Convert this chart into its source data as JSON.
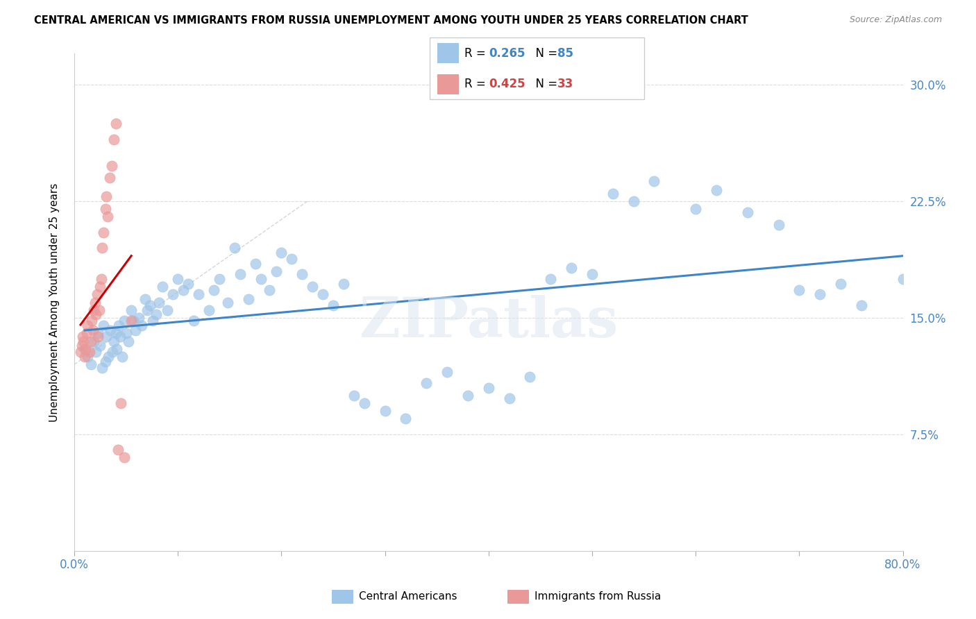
{
  "title": "CENTRAL AMERICAN VS IMMIGRANTS FROM RUSSIA UNEMPLOYMENT AMONG YOUTH UNDER 25 YEARS CORRELATION CHART",
  "source": "Source: ZipAtlas.com",
  "ylabel": "Unemployment Among Youth under 25 years",
  "xlim": [
    0.0,
    0.8
  ],
  "ylim": [
    0.0,
    0.32
  ],
  "xticks": [
    0.0,
    0.1,
    0.2,
    0.3,
    0.4,
    0.5,
    0.6,
    0.7,
    0.8
  ],
  "ytick_positions": [
    0.075,
    0.15,
    0.225,
    0.3
  ],
  "ytick_labels": [
    "7.5%",
    "15.0%",
    "22.5%",
    "30.0%"
  ],
  "blue_R": 0.265,
  "blue_N": 85,
  "pink_R": 0.425,
  "pink_N": 33,
  "blue_color": "#9fc5e8",
  "pink_color": "#ea9999",
  "blue_trend_color": "#3d85c8",
  "pink_trend_color": "#cc0000",
  "diag_color": "#cccccc",
  "watermark": "ZIPatlas",
  "blue_scatter_x": [
    0.01,
    0.013,
    0.016,
    0.019,
    0.021,
    0.023,
    0.025,
    0.027,
    0.028,
    0.03,
    0.031,
    0.033,
    0.035,
    0.037,
    0.038,
    0.04,
    0.041,
    0.043,
    0.044,
    0.046,
    0.048,
    0.05,
    0.052,
    0.055,
    0.057,
    0.059,
    0.062,
    0.065,
    0.068,
    0.07,
    0.073,
    0.076,
    0.079,
    0.082,
    0.085,
    0.09,
    0.095,
    0.1,
    0.105,
    0.11,
    0.115,
    0.12,
    0.13,
    0.135,
    0.14,
    0.148,
    0.155,
    0.16,
    0.168,
    0.175,
    0.18,
    0.188,
    0.195,
    0.2,
    0.21,
    0.22,
    0.23,
    0.24,
    0.25,
    0.26,
    0.27,
    0.28,
    0.3,
    0.32,
    0.34,
    0.36,
    0.38,
    0.4,
    0.42,
    0.44,
    0.46,
    0.48,
    0.5,
    0.52,
    0.54,
    0.56,
    0.6,
    0.62,
    0.65,
    0.68,
    0.7,
    0.72,
    0.74,
    0.76,
    0.8
  ],
  "blue_scatter_y": [
    0.13,
    0.125,
    0.12,
    0.135,
    0.128,
    0.14,
    0.132,
    0.118,
    0.145,
    0.122,
    0.138,
    0.125,
    0.142,
    0.128,
    0.135,
    0.14,
    0.13,
    0.145,
    0.138,
    0.125,
    0.148,
    0.14,
    0.135,
    0.155,
    0.148,
    0.142,
    0.15,
    0.145,
    0.162,
    0.155,
    0.158,
    0.148,
    0.152,
    0.16,
    0.17,
    0.155,
    0.165,
    0.175,
    0.168,
    0.172,
    0.148,
    0.165,
    0.155,
    0.168,
    0.175,
    0.16,
    0.195,
    0.178,
    0.162,
    0.185,
    0.175,
    0.168,
    0.18,
    0.192,
    0.188,
    0.178,
    0.17,
    0.165,
    0.158,
    0.172,
    0.1,
    0.095,
    0.09,
    0.085,
    0.108,
    0.115,
    0.1,
    0.105,
    0.098,
    0.112,
    0.175,
    0.182,
    0.178,
    0.23,
    0.225,
    0.238,
    0.22,
    0.232,
    0.218,
    0.21,
    0.168,
    0.165,
    0.172,
    0.158,
    0.175
  ],
  "pink_scatter_x": [
    0.006,
    0.007,
    0.008,
    0.009,
    0.01,
    0.011,
    0.012,
    0.013,
    0.015,
    0.016,
    0.017,
    0.018,
    0.019,
    0.02,
    0.021,
    0.022,
    0.023,
    0.024,
    0.025,
    0.026,
    0.027,
    0.028,
    0.03,
    0.031,
    0.032,
    0.034,
    0.036,
    0.038,
    0.04,
    0.042,
    0.045,
    0.048,
    0.055
  ],
  "pink_scatter_y": [
    0.128,
    0.132,
    0.138,
    0.135,
    0.125,
    0.13,
    0.14,
    0.145,
    0.128,
    0.135,
    0.148,
    0.142,
    0.155,
    0.16,
    0.152,
    0.165,
    0.138,
    0.155,
    0.17,
    0.175,
    0.195,
    0.205,
    0.22,
    0.228,
    0.215,
    0.24,
    0.248,
    0.265,
    0.275,
    0.065,
    0.095,
    0.06,
    0.148
  ]
}
